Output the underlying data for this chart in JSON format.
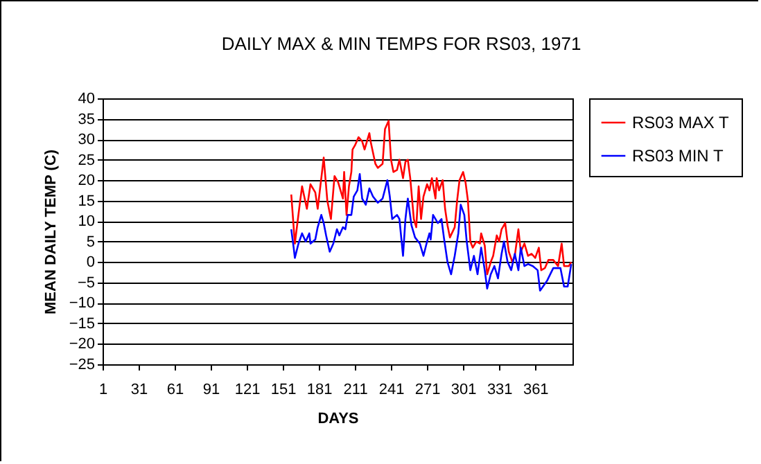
{
  "chart_data": {
    "type": "line",
    "title": "DAILY MAX & MIN TEMPS FOR RS03, 1971",
    "xlabel": "DAYS",
    "ylabel": "MEAN DAILY TEMP (C)",
    "xlim": [
      1,
      392
    ],
    "xticks": [
      1,
      31,
      61,
      91,
      121,
      151,
      181,
      211,
      241,
      271,
      301,
      331,
      361
    ],
    "ylim": [
      -25,
      40
    ],
    "yticks": [
      -25,
      -20,
      -15,
      -10,
      -5,
      0,
      5,
      10,
      15,
      20,
      25,
      30,
      35,
      40
    ],
    "grid": "y",
    "legend": "right",
    "line_style": "solid",
    "marker": "none",
    "series": [
      {
        "name": "RS03 MAX T",
        "color": "#ff0000",
        "x": [
          158,
          161,
          165,
          167,
          171,
          174,
          178,
          180,
          183,
          185,
          188,
          191,
          194,
          197,
          201,
          202,
          204,
          206,
          208,
          209,
          211,
          214,
          217,
          219,
          223,
          224,
          228,
          230,
          234,
          236,
          239,
          241,
          243,
          246,
          248,
          251,
          253,
          255,
          257,
          260,
          262,
          264,
          266,
          268,
          271,
          273,
          275,
          278,
          279,
          281,
          284,
          286,
          288,
          290,
          294,
          296,
          298,
          301,
          303,
          305,
          307,
          309,
          312,
          315,
          316,
          319,
          321,
          324,
          326,
          329,
          331,
          333,
          336,
          339,
          342,
          344,
          347,
          349,
          352,
          355,
          358,
          361,
          364,
          366,
          369,
          372,
          376,
          380,
          383,
          385,
          389,
          391
        ],
        "values": [
          16.5,
          4.5,
          14,
          18.5,
          13,
          19,
          17,
          13,
          20.5,
          25.5,
          15,
          10.5,
          21,
          19.5,
          15.5,
          22,
          11.5,
          18.5,
          22,
          27.5,
          28.5,
          30.5,
          29.5,
          27.5,
          31.5,
          29.5,
          24,
          23,
          24,
          32.5,
          34.5,
          25,
          22,
          22.5,
          25,
          20.5,
          24.5,
          25,
          20.5,
          10.5,
          8.5,
          18.5,
          10.5,
          16,
          19,
          17.5,
          20.5,
          15.5,
          20.5,
          17.5,
          20,
          13,
          9,
          6,
          8.5,
          15,
          20,
          22,
          19.5,
          15,
          5,
          3.5,
          5,
          4.5,
          7,
          4,
          -3,
          0,
          1.5,
          6.5,
          5,
          8,
          9.5,
          2.5,
          0,
          1.5,
          8,
          2.5,
          4.5,
          1.5,
          2,
          1,
          3.5,
          -2,
          -1.5,
          0.5,
          0.5,
          -1,
          4.5,
          -1,
          -1,
          0
        ]
      },
      {
        "name": "RS03 MIN T",
        "color": "#0000ff",
        "x": [
          158,
          160,
          161,
          164,
          167,
          170,
          173,
          174,
          178,
          180,
          183,
          185,
          187,
          190,
          193,
          196,
          198,
          201,
          203,
          205,
          208,
          210,
          213,
          215,
          217,
          220,
          223,
          226,
          230,
          234,
          238,
          240,
          242,
          246,
          248,
          251,
          253,
          255,
          258,
          261,
          265,
          268,
          271,
          273,
          274,
          276,
          280,
          283,
          285,
          288,
          291,
          294,
          297,
          299,
          302,
          304,
          307,
          310,
          313,
          316,
          319,
          321,
          324,
          327,
          330,
          333,
          335,
          338,
          341,
          344,
          347,
          349,
          352,
          355,
          359,
          363,
          365,
          371,
          376,
          382,
          385,
          388,
          391
        ],
        "values": [
          8,
          3.5,
          1,
          4.5,
          7,
          5,
          7,
          4.5,
          5.5,
          8.5,
          11.5,
          9.5,
          6.5,
          2.5,
          4.5,
          8,
          6.5,
          8.5,
          8,
          11.5,
          11.5,
          16,
          17.5,
          21.5,
          15.5,
          14,
          18,
          16,
          14.5,
          15.5,
          20,
          16,
          10.5,
          11.5,
          10.5,
          1.5,
          10.5,
          15.5,
          9,
          6,
          4.5,
          1.5,
          5,
          7,
          5.5,
          11.5,
          9.5,
          10.5,
          6,
          0,
          -3,
          1.5,
          7,
          14,
          11.5,
          5,
          -2,
          1.5,
          -3,
          3.5,
          -2,
          -6.5,
          -3,
          -1,
          -4,
          2,
          5,
          0,
          -2,
          2,
          -2,
          3.5,
          -1,
          -0.5,
          -1,
          -2,
          -7,
          -4.5,
          -1.5,
          -1.5,
          -6,
          -6,
          -0.5
        ]
      }
    ]
  }
}
